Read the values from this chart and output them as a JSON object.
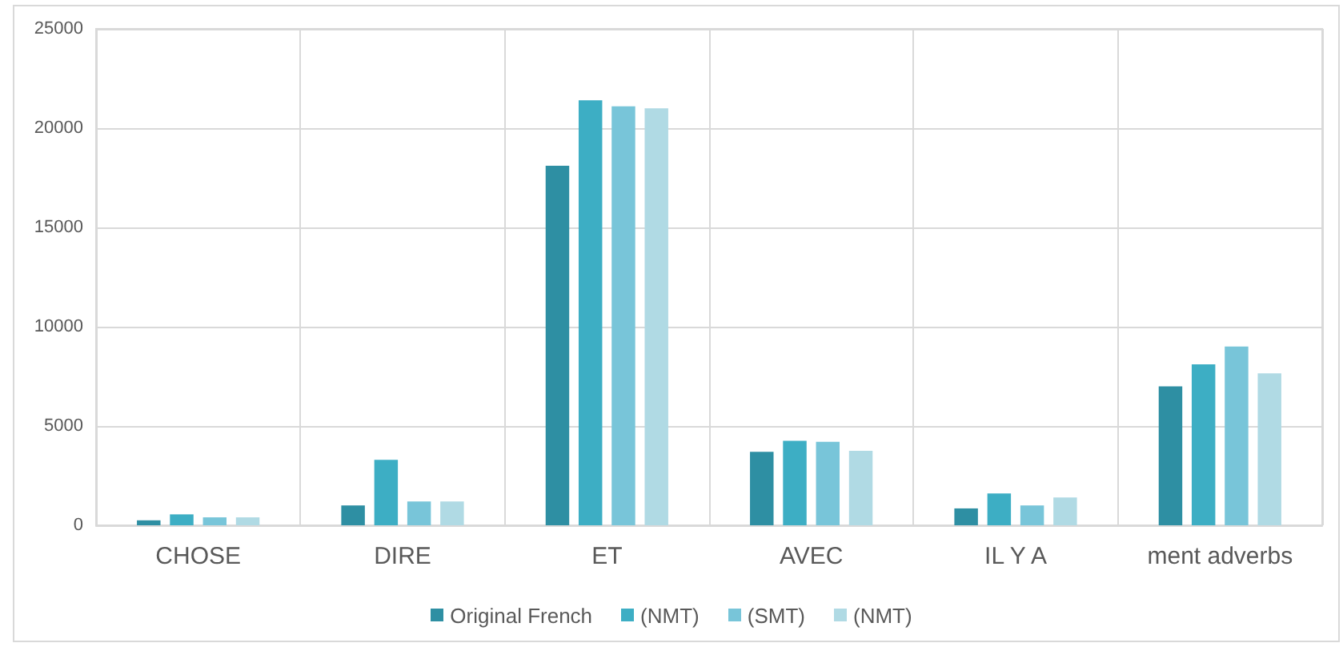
{
  "chart_data": {
    "type": "bar",
    "categories": [
      "CHOSE",
      "DIRE",
      "ET",
      "AVEC",
      "IL Y A",
      "ment adverbs"
    ],
    "series": [
      {
        "name": "Original French",
        "color": "#2e8fa3",
        "values": [
          250,
          1000,
          18100,
          3700,
          850,
          7000
        ]
      },
      {
        "name": "(NMT)",
        "color": "#3daec4",
        "values": [
          550,
          3300,
          21400,
          4250,
          1600,
          8100
        ]
      },
      {
        "name": "(SMT)",
        "color": "#78c5d9",
        "values": [
          400,
          1200,
          21100,
          4200,
          1000,
          9000
        ]
      },
      {
        "name": "(NMT)",
        "color": "#b0dae4",
        "values": [
          400,
          1200,
          21000,
          3750,
          1400,
          7650
        ]
      }
    ],
    "ylim": [
      0,
      25000
    ],
    "yticks": [
      0,
      5000,
      10000,
      15000,
      20000,
      25000
    ],
    "grid": true,
    "legend": "bottom"
  }
}
